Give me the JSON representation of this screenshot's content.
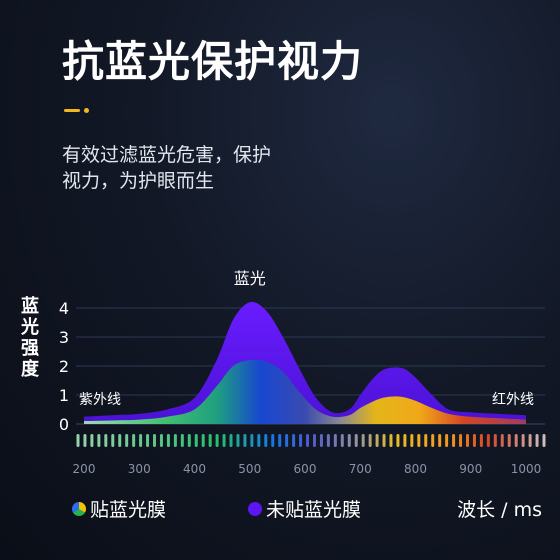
{
  "header": {
    "title": "抗蓝光保护视力",
    "description_lines": [
      "有效过滤蓝光危害，保护",
      "视力，为护眼而生"
    ]
  },
  "chart_data": {
    "type": "area",
    "ylabel": "蓝光强度",
    "xlabel": "波长 / ms",
    "ylim": [
      0,
      4
    ],
    "yticks": [
      0,
      1,
      2,
      3,
      4
    ],
    "xlim": [
      200,
      1000
    ],
    "xticks": [
      200,
      300,
      400,
      500,
      600,
      700,
      800,
      900,
      1000
    ],
    "annotations": [
      {
        "text": "蓝光",
        "x": 500,
        "y": 4.2
      },
      {
        "text": "紫外线",
        "x": 230,
        "y": 0.9
      },
      {
        "text": "红外线",
        "x": 1000,
        "y": 0.9
      }
    ],
    "series": [
      {
        "name": "未贴蓝光膜",
        "color": "#5b16f2",
        "x": [
          200,
          250,
          300,
          350,
          400,
          440,
          470,
          500,
          530,
          560,
          590,
          620,
          650,
          680,
          700,
          720,
          740,
          760,
          780,
          800,
          830,
          860,
          900,
          950,
          1000
        ],
        "values": [
          0.25,
          0.3,
          0.35,
          0.5,
          0.9,
          2.2,
          3.6,
          4.2,
          3.9,
          3.0,
          1.9,
          0.9,
          0.4,
          0.5,
          1.0,
          1.5,
          1.85,
          1.95,
          1.9,
          1.6,
          1.0,
          0.5,
          0.4,
          0.35,
          0.3
        ]
      },
      {
        "name": "贴蓝光膜",
        "color": "gradient",
        "x": [
          200,
          250,
          300,
          350,
          400,
          440,
          470,
          500,
          530,
          560,
          590,
          620,
          650,
          680,
          700,
          720,
          740,
          760,
          780,
          800,
          830,
          860,
          900,
          950,
          1000
        ],
        "values": [
          0.1,
          0.12,
          0.15,
          0.25,
          0.5,
          1.3,
          2.0,
          2.2,
          2.15,
          1.8,
          1.1,
          0.5,
          0.25,
          0.3,
          0.55,
          0.75,
          0.9,
          0.95,
          0.92,
          0.8,
          0.55,
          0.35,
          0.25,
          0.2,
          0.15
        ]
      }
    ],
    "legend": [
      {
        "label": "贴蓝光膜",
        "swatch": "multicolor"
      },
      {
        "label": "未贴蓝光膜",
        "swatch": "#5b16f2"
      }
    ],
    "grid": true
  }
}
